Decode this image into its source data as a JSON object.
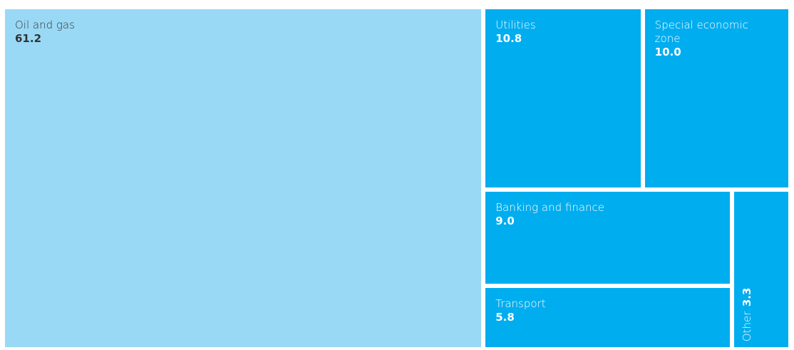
{
  "chart_data": {
    "type": "treemap",
    "categories": [
      "Oil and gas",
      "Utilities",
      "Special economic zone",
      "Banking and finance",
      "Transport",
      "Other"
    ],
    "values": [
      61.2,
      10.8,
      10,
      9,
      5.8,
      3.3
    ],
    "value_labels": [
      "61.2",
      "10.8",
      "10.0",
      "9.0",
      "5.8",
      "3.3"
    ],
    "colors": [
      "#99d9f5",
      "#00adef",
      "#00adef",
      "#00adef",
      "#00adef",
      "#00adef"
    ]
  }
}
